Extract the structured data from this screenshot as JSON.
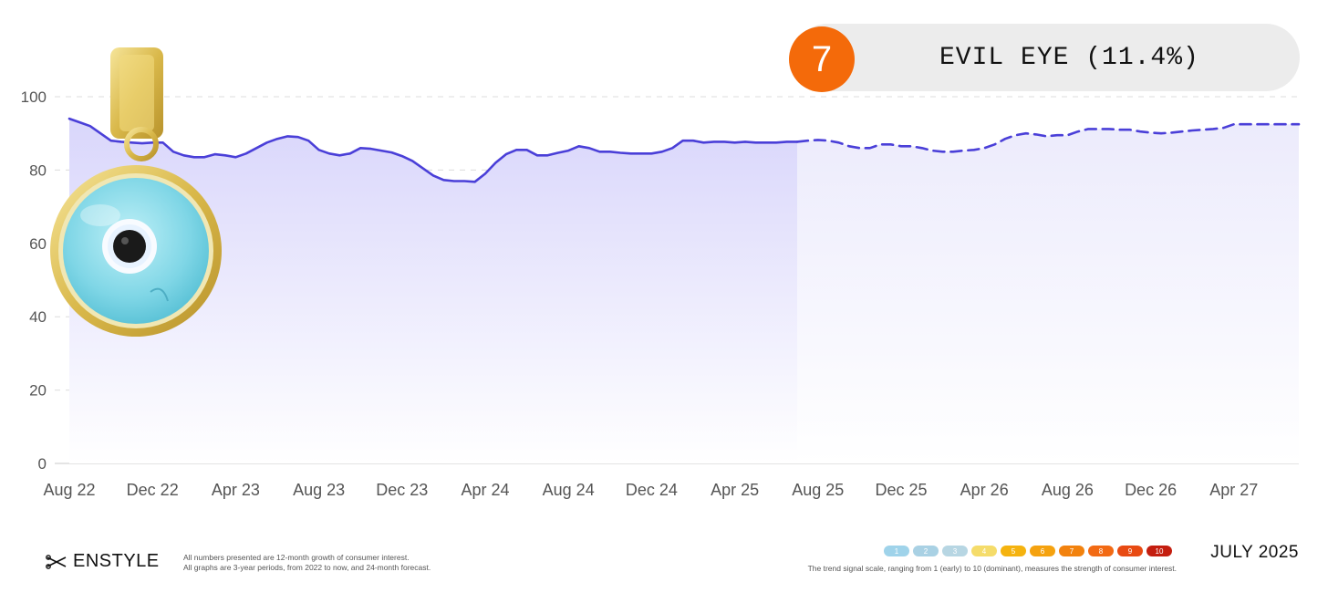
{
  "chart_data": {
    "type": "area",
    "title": "",
    "xlabel": "",
    "ylabel": "",
    "ylim": [
      0,
      100
    ],
    "yticks": [
      "0",
      "20",
      "40",
      "60",
      "80",
      "100"
    ],
    "xticks": [
      "Aug 22",
      "Dec 22",
      "Apr 23",
      "Aug 23",
      "Dec 23",
      "Apr 24",
      "Aug 24",
      "Dec 24",
      "Apr 25",
      "Aug 25",
      "Dec 25",
      "Apr 26",
      "Aug 26",
      "Dec 26",
      "Apr 27"
    ],
    "grid": true,
    "series": [
      {
        "style": "solid",
        "color": "#4a3fd8",
        "x": [
          0,
          0.5,
          1,
          1.5,
          2,
          2.5,
          3,
          3.5,
          4,
          4.5,
          5,
          5.5,
          6,
          6.5,
          7,
          7.5,
          8,
          8.5,
          9,
          9.5,
          10,
          10.5,
          11,
          11.5,
          12,
          12.5,
          13,
          13.5,
          14,
          14.5,
          15,
          15.5,
          16,
          16.5,
          17,
          17.5,
          18,
          18.5,
          19,
          19.5,
          20,
          20.5,
          21,
          21.5,
          22,
          22.5,
          23,
          23.5,
          24,
          24.5,
          25,
          25.5,
          26,
          26.5,
          27,
          27.5,
          28,
          28.5,
          29,
          29.5,
          30,
          30.5,
          31,
          31.5,
          32,
          32.5,
          33,
          33.5,
          34,
          34.5,
          35
        ],
        "values": [
          94,
          93,
          92,
          90,
          88,
          87.7,
          87.5,
          87.3,
          87.5,
          87.5,
          85,
          84,
          83.5,
          83.5,
          84.3,
          84,
          83.5,
          84.5,
          86,
          87.5,
          88.5,
          89.2,
          89,
          88,
          85.5,
          84.5,
          84,
          84.5,
          86,
          85.8,
          85.3,
          84.8,
          83.8,
          82.5,
          80.5,
          78.5,
          77.3,
          77,
          77,
          76.8,
          79,
          82,
          84.3,
          85.5,
          85.5,
          84,
          84,
          84.7,
          85.3,
          86.5,
          86,
          85,
          85,
          84.7,
          84.5,
          84.5,
          84.5,
          85,
          86,
          88,
          88,
          87.5,
          87.7,
          87.7,
          87.5,
          87.7,
          87.5,
          87.5,
          87.5,
          87.7,
          87.7
        ]
      },
      {
        "style": "dashed",
        "color": "#4a3fd8",
        "x": [
          35,
          35.5,
          36,
          36.5,
          37,
          37.5,
          38,
          38.5,
          39,
          39.5,
          40,
          40.5,
          41,
          41.5,
          42,
          42.5,
          43,
          43.5,
          44,
          44.5,
          45,
          45.5,
          46,
          46.5,
          47,
          47.5,
          48,
          48.5,
          49,
          49.5,
          50,
          50.5,
          51,
          51.5,
          52,
          52.5,
          53,
          53.5,
          54,
          54.5,
          55,
          55.5,
          56,
          56.5,
          57,
          57.5,
          58,
          58.5,
          59
        ],
        "values": [
          87.7,
          88,
          88.2,
          88,
          87.5,
          86.5,
          86,
          86,
          87,
          87,
          86.5,
          86.5,
          86,
          85.3,
          85,
          85,
          85.3,
          85.5,
          86,
          87,
          88.5,
          89.5,
          90,
          89.7,
          89.2,
          89.5,
          89.5,
          90.5,
          91.2,
          91.2,
          91.2,
          91,
          91,
          90.5,
          90.2,
          90,
          90.2,
          90.5,
          90.8,
          91,
          91.2,
          91.5,
          92.5,
          92.5,
          92.5,
          92.5,
          92.5,
          92.5,
          92.5
        ]
      }
    ]
  },
  "badge": {
    "rank": "7",
    "title": "EVIL EYE (11.4%)",
    "bg": "#ececec",
    "rank_color": "#f46a0a"
  },
  "footer": {
    "brand": "ENSTYLE",
    "note_line1": "All numbers presented are 12-month growth of consumer interest.",
    "note_line2": "All graphs are 3-year periods, from 2022 to now, and 24-month forecast.",
    "scale": [
      "1",
      "2",
      "3",
      "4",
      "5",
      "6",
      "7",
      "8",
      "9",
      "10"
    ],
    "scale_colors": [
      "#9fd3ea",
      "#a9d1e4",
      "#b7d6e3",
      "#f5dc6a",
      "#f5b30f",
      "#f5a20f",
      "#f2820e",
      "#f26a14",
      "#e84a12",
      "#c41e0f"
    ],
    "scale_note": "The trend signal scale, ranging from 1 (early) to 10 (dominant), measures the strength of consumer interest.",
    "date": "JULY 2025"
  }
}
